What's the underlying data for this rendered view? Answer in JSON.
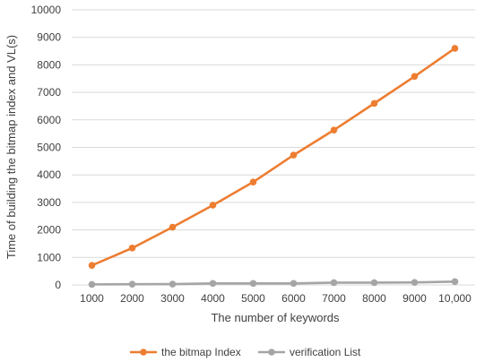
{
  "chart_data": {
    "type": "line",
    "categories": [
      "1000",
      "2000",
      "3000",
      "4000",
      "5000",
      "6000",
      "7000",
      "8000",
      "9000",
      "10,000"
    ],
    "series": [
      {
        "name": "the bitmap Index",
        "color": "#ED7D31",
        "values": [
          710,
          1340,
          2100,
          2900,
          3740,
          4720,
          5630,
          6600,
          7580,
          8600
        ]
      },
      {
        "name": "verification List",
        "color": "#A5A5A5",
        "values": [
          20,
          25,
          30,
          55,
          55,
          55,
          85,
          85,
          90,
          120
        ]
      }
    ],
    "title": "",
    "xlabel": "The number of  keywords",
    "ylabel": "Time of building the bitmap index and VL(s)",
    "ylim": [
      0,
      10000
    ],
    "ytick_step": 1000,
    "yticks": [
      "0",
      "1000",
      "2000",
      "3000",
      "4000",
      "5000",
      "6000",
      "7000",
      "8000",
      "9000",
      "10000"
    ],
    "grid": true,
    "legend_position": "bottom"
  }
}
